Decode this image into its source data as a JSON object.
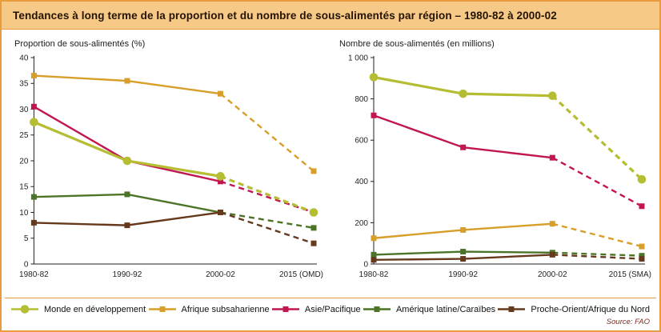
{
  "page": {
    "title": "Tendances à long terme de la proportion et du nombre de sous-alimentés par région – 1980-82 à 2000-02",
    "source": "Source: FAO"
  },
  "colors": {
    "frame_border": "#e89c3e",
    "title_bar_bg": "#f7c986",
    "title_text": "#231405",
    "axis": "#231f20",
    "source_text": "#7b2d26"
  },
  "chart_data": [
    {
      "type": "line",
      "title": "Proportion de sous-alimentés (%)",
      "categories": [
        "1980-82",
        "1990-92",
        "2000-02",
        "2015 (OMD)"
      ],
      "ylim": [
        0,
        40
      ],
      "yticks": [
        {
          "v": 0,
          "label": "0"
        },
        {
          "v": 5,
          "label": "5"
        },
        {
          "v": 10,
          "label": "10"
        },
        {
          "v": 15,
          "label": "15"
        },
        {
          "v": 20,
          "label": "20"
        },
        {
          "v": 25,
          "label": "25"
        },
        {
          "v": 30,
          "label": "30"
        },
        {
          "v": 35,
          "label": "35"
        },
        {
          "v": 40,
          "label": "40"
        }
      ],
      "grid": false,
      "dashed_from_index": 2,
      "series": [
        {
          "name": "Monde en développement",
          "color": "#b5bd32",
          "marker": "circle",
          "width": 3.2,
          "z": 1,
          "values": [
            27.5,
            20,
            17,
            10
          ]
        },
        {
          "name": "Afrique subsaharienne",
          "color": "#d79e2a",
          "marker": "square",
          "values": [
            36.5,
            35.5,
            33,
            18
          ]
        },
        {
          "name": "Asie/Pacifique",
          "color": "#c11650",
          "marker": "square",
          "values": [
            30.5,
            20,
            16,
            10
          ]
        },
        {
          "name": "Amérique latine/Caraïbes",
          "color": "#4b7427",
          "marker": "square",
          "values": [
            13,
            13.5,
            10,
            7
          ]
        },
        {
          "name": "Proche-Orient/Afrique du Nord",
          "color": "#66391c",
          "marker": "square",
          "values": [
            8,
            7.5,
            10,
            4
          ]
        }
      ]
    },
    {
      "type": "line",
      "title": "Nombre de sous-alimentés (en millions)",
      "categories": [
        "1980-82",
        "1990-92",
        "2000-02",
        "2015 (SMA)"
      ],
      "ylim": [
        0,
        1000
      ],
      "yticks": [
        {
          "v": 0,
          "label": "0"
        },
        {
          "v": 200,
          "label": "200"
        },
        {
          "v": 400,
          "label": "400"
        },
        {
          "v": 600,
          "label": "600"
        },
        {
          "v": 800,
          "label": "800"
        },
        {
          "v": 1000,
          "label": "1 000"
        }
      ],
      "grid": false,
      "dashed_from_index": 2,
      "series": [
        {
          "name": "Monde en développement",
          "color": "#b5bd32",
          "marker": "circle",
          "width": 3.2,
          "z": 1,
          "values": [
            905,
            825,
            815,
            410
          ]
        },
        {
          "name": "Afrique subsaharienne",
          "color": "#d79e2a",
          "marker": "square",
          "values": [
            125,
            165,
            195,
            85
          ]
        },
        {
          "name": "Asie/Pacifique",
          "color": "#c11650",
          "marker": "square",
          "values": [
            720,
            565,
            515,
            280
          ]
        },
        {
          "name": "Amérique latine/Caraïbes",
          "color": "#4b7427",
          "marker": "square",
          "values": [
            45,
            60,
            55,
            40
          ]
        },
        {
          "name": "Proche-Orient/Afrique du Nord",
          "color": "#66391c",
          "marker": "square",
          "values": [
            20,
            25,
            45,
            25
          ]
        }
      ]
    }
  ],
  "legend": {
    "items": [
      {
        "label": "Monde en développement",
        "color": "#b5bd32",
        "marker": "circle"
      },
      {
        "label": "Afrique subsaharienne",
        "color": "#d79e2a",
        "marker": "square"
      },
      {
        "label": "Asie/Pacifique",
        "color": "#c11650",
        "marker": "square"
      },
      {
        "label": "Amérique latine/Caraïbes",
        "color": "#4b7427",
        "marker": "square"
      },
      {
        "label": "Proche-Orient/Afrique du Nord",
        "color": "#66391c",
        "marker": "square"
      }
    ]
  }
}
